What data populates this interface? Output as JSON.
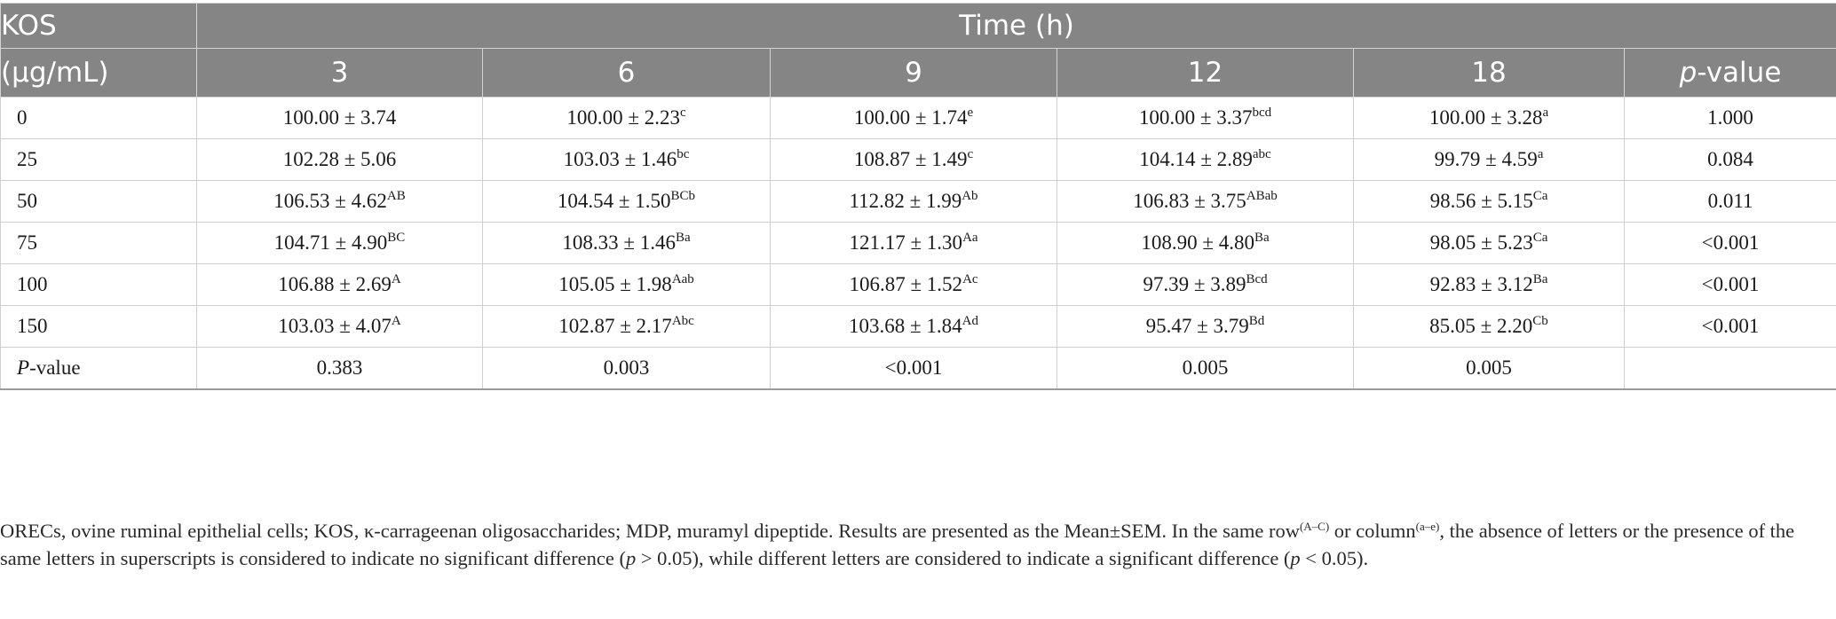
{
  "table": {
    "header": {
      "kos": "KOS",
      "unit": "(μg/mL)",
      "time": "Time (h)",
      "times": [
        "3",
        "6",
        "9",
        "12",
        "18"
      ],
      "pvalue_italic": "p",
      "pvalue_rest": "-value"
    },
    "rows": [
      {
        "label": "0",
        "cells": [
          {
            "v": "100.00 ± 3.74",
            "s": ""
          },
          {
            "v": "100.00 ± 2.23",
            "s": "c"
          },
          {
            "v": "100.00 ± 1.74",
            "s": "e"
          },
          {
            "v": "100.00 ± 3.37",
            "s": "bcd"
          },
          {
            "v": "100.00 ± 3.28",
            "s": "a"
          },
          {
            "v": "1.000",
            "s": ""
          }
        ]
      },
      {
        "label": "25",
        "cells": [
          {
            "v": "102.28 ± 5.06",
            "s": ""
          },
          {
            "v": "103.03 ± 1.46",
            "s": "bc"
          },
          {
            "v": "108.87 ± 1.49",
            "s": "c"
          },
          {
            "v": "104.14 ± 2.89",
            "s": "abc"
          },
          {
            "v": "99.79 ± 4.59",
            "s": "a"
          },
          {
            "v": "0.084",
            "s": ""
          }
        ]
      },
      {
        "label": "50",
        "cells": [
          {
            "v": "106.53 ± 4.62",
            "s": "AB"
          },
          {
            "v": "104.54 ± 1.50",
            "s": "BCb"
          },
          {
            "v": "112.82 ± 1.99",
            "s": "Ab"
          },
          {
            "v": "106.83 ± 3.75",
            "s": "ABab"
          },
          {
            "v": "98.56 ± 5.15",
            "s": "Ca"
          },
          {
            "v": "0.011",
            "s": ""
          }
        ]
      },
      {
        "label": "75",
        "cells": [
          {
            "v": "104.71 ± 4.90",
            "s": "BC"
          },
          {
            "v": "108.33 ± 1.46",
            "s": "Ba"
          },
          {
            "v": "121.17 ± 1.30",
            "s": "Aa"
          },
          {
            "v": "108.90 ± 4.80",
            "s": "Ba"
          },
          {
            "v": "98.05 ± 5.23",
            "s": "Ca"
          },
          {
            "v": "<0.001",
            "s": ""
          }
        ]
      },
      {
        "label": "100",
        "cells": [
          {
            "v": "106.88 ± 2.69",
            "s": "A"
          },
          {
            "v": "105.05 ± 1.98",
            "s": "Aab"
          },
          {
            "v": "106.87 ± 1.52",
            "s": "Ac"
          },
          {
            "v": "97.39 ± 3.89",
            "s": "Bcd"
          },
          {
            "v": "92.83 ± 3.12",
            "s": "Ba"
          },
          {
            "v": "<0.001",
            "s": ""
          }
        ]
      },
      {
        "label": "150",
        "cells": [
          {
            "v": "103.03 ± 4.07",
            "s": "A"
          },
          {
            "v": "102.87 ± 2.17",
            "s": "Abc"
          },
          {
            "v": "103.68 ± 1.84",
            "s": "Ad"
          },
          {
            "v": "95.47 ± 3.79",
            "s": "Bd"
          },
          {
            "v": "85.05 ± 2.20",
            "s": "Cb"
          },
          {
            "v": "<0.001",
            "s": ""
          }
        ]
      }
    ],
    "p_row": {
      "label_italic": "P",
      "label_rest": "-value",
      "values": [
        "0.383",
        "0.003",
        "<0.001",
        "0.005",
        "0.005",
        ""
      ]
    }
  },
  "footnote": {
    "part1": "ORECs, ovine ruminal epithelial cells; KOS, κ-carrageenan oligosaccharides; MDP, muramyl dipeptide. Results are presented as the Mean±SEM. In the same row",
    "sup1": "(A–C)",
    "part2": " or column",
    "sup2": "(a–e)",
    "part3": ", the absence of letters or the presence of the same letters in superscripts is considered to indicate no significant difference (",
    "p1_italic": "p",
    "part4": " > 0.05), while different letters are considered to indicate a significant difference (",
    "p2_italic": "p",
    "part5": " < 0.05)."
  }
}
